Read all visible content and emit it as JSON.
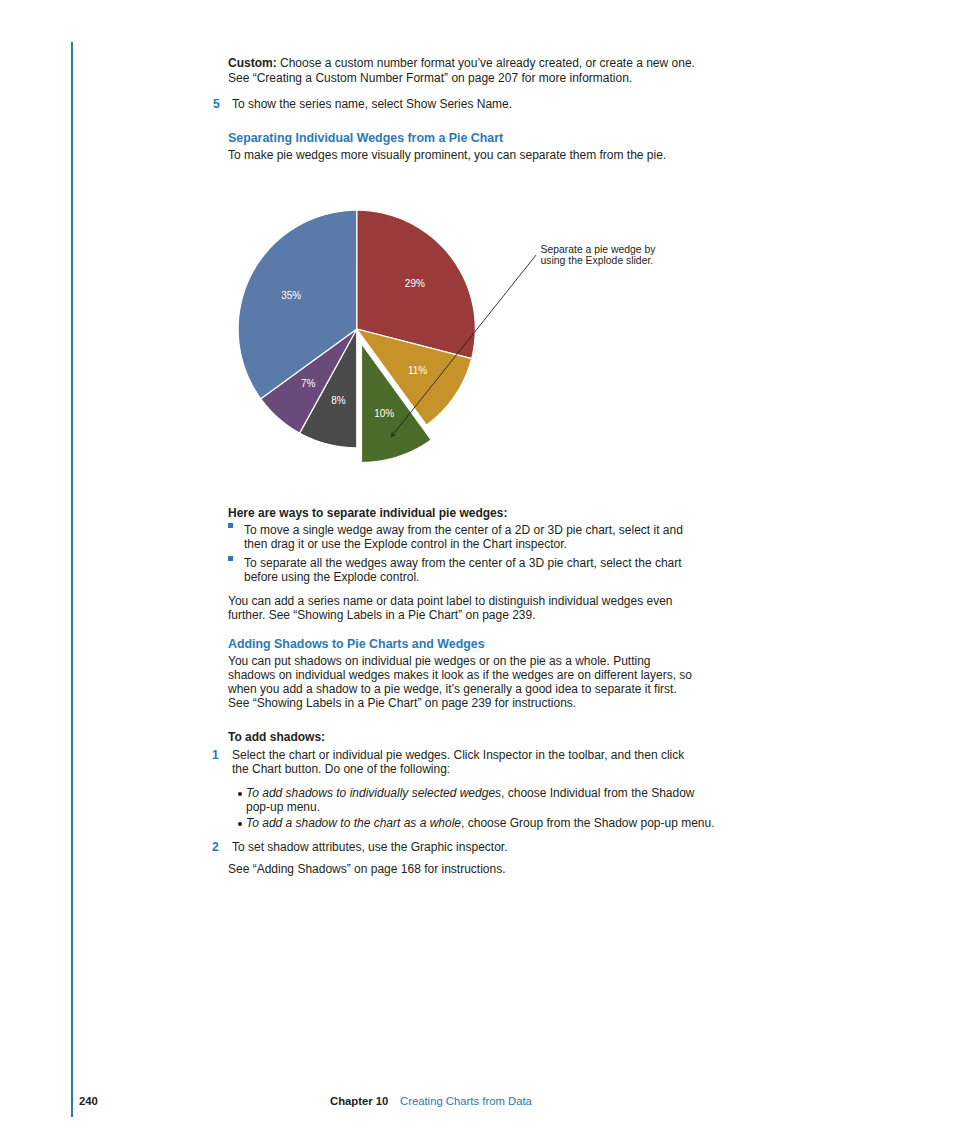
{
  "chart_data": {
    "type": "pie",
    "values": [
      29,
      11,
      10,
      8,
      7,
      35
    ],
    "value_labels": [
      "29%",
      "11%",
      "10%",
      "8%",
      "7%",
      "35%"
    ],
    "colors": [
      "#9b3a3a",
      "#c8922a",
      "#4a6b2a",
      "#4a4a4a",
      "#6a4a7a",
      "#5a7aaa"
    ],
    "data_labels": true,
    "annotations": [
      "Separate a pie wedge by\nusing the Explode slider.",
      "Custom:",
      " Choose a custom number format you’ve already created, or create a new one.",
      "See “Creating a Custom Number Format” on page 207 for more information.",
      "5",
      "To show the series name, select Show Series Name.",
      "Separating Individual Wedges from a Pie Chart",
      "To make pie wedges more visually prominent, you can separate them from the pie.",
      "Here are ways to separate individual pie wedges:",
      "To move a single wedge away from the center of a 2D or 3D pie chart, select it and",
      "then drag it or use the Explode control in the Chart inspector.",
      "To separate all the wedges away from the center of a 3D pie chart, select the chart",
      "before using the Explode control.",
      "You can add a series name or data point label to distinguish individual wedges even",
      "further. See “Showing Labels in a Pie Chart” on page 239.",
      "Adding Shadows to Pie Charts and Wedges",
      "You can put shadows on individual pie wedges or on the pie as a whole. Putting",
      "shadows on individual wedges makes it look as if the wedges are on different layers, so",
      "when you add a shadow to a pie wedge, it’s generally a good idea to separate it first.",
      "See “Showing Labels in a Pie Chart” on page 239 for instructions.",
      "To add shadows:",
      "1",
      "Select the chart or individual pie wedges. Click Inspector in the toolbar, and then click",
      "the Chart button. Do one of the following:",
      "To add shadows to individually selected wedges",
      ", choose Individual from the Shadow",
      "pop-up menu.",
      "To add a shadow to the chart as a whole",
      ", choose Group from the Shadow pop-up menu.",
      "2",
      "To set shadow attributes, use the Graphic inspector.",
      "See “Adding Shadows” on page 168 for instructions.",
      "240",
      "Chapter 10",
      "Creating Charts from Data"
    ]
  }
}
